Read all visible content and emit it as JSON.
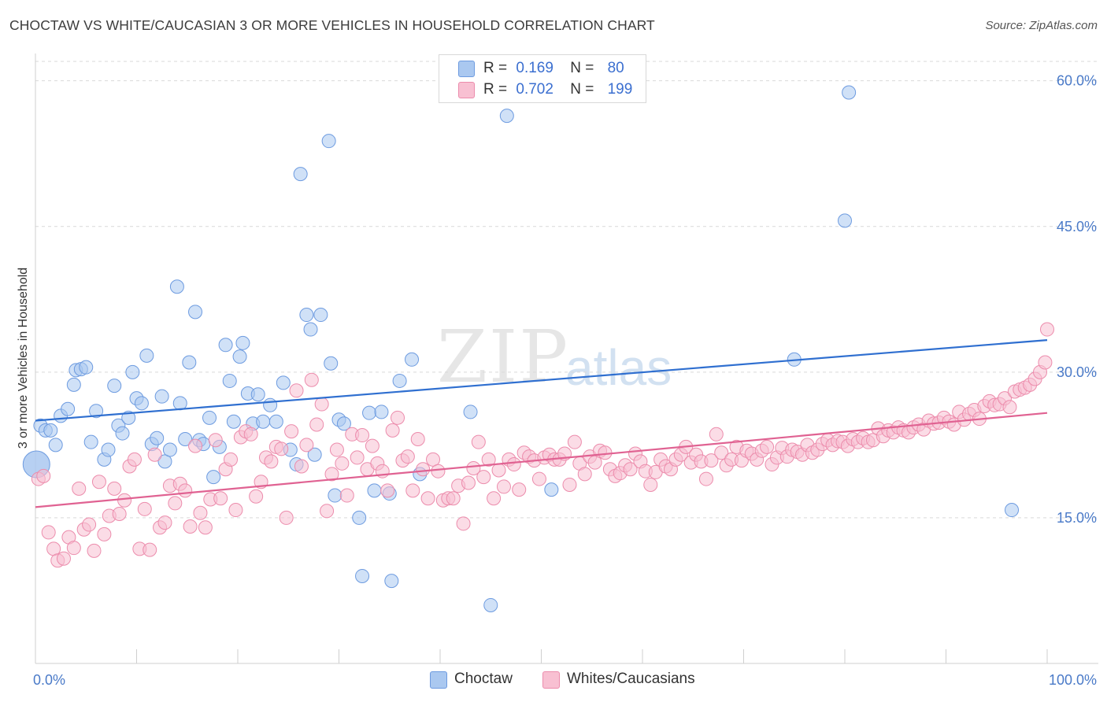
{
  "title": "CHOCTAW VS WHITE/CAUCASIAN 3 OR MORE VEHICLES IN HOUSEHOLD CORRELATION CHART",
  "source": "Source: ZipAtlas.com",
  "watermark": {
    "zip": "ZIP",
    "atlas": "atlas"
  },
  "legend": {
    "rows": [
      {
        "r_label": "R =",
        "r_value": "0.169",
        "n_label": "N =",
        "n_value": "80",
        "color": "#aac8f0",
        "border": "#6d9be0"
      },
      {
        "r_label": "R =",
        "r_value": "0.702",
        "n_label": "N =",
        "n_value": "199",
        "color": "#f8c0d2",
        "border": "#ec8cac"
      }
    ]
  },
  "bottom_legend": [
    "Choctaw",
    "Whites/Caucasians"
  ],
  "chart_data": {
    "type": "scatter",
    "ylabel": "3 or more Vehicles in Household",
    "xlim": [
      0,
      100
    ],
    "ylim": [
      0,
      62
    ],
    "x_tick_labels": [
      "0.0%",
      "100.0%"
    ],
    "y_ticks": [
      15,
      30,
      45,
      60
    ],
    "y_tick_labels": [
      "15.0%",
      "30.0%",
      "45.0%",
      "60.0%"
    ],
    "grid": "horizontal dashed",
    "series": [
      {
        "name": "Choctaw",
        "color": "#aac8f0",
        "stroke": "#6d9be0",
        "line_color": "#2f6fd0",
        "trend": [
          [
            0,
            25.0
          ],
          [
            100,
            33.3
          ]
        ],
        "points": [
          [
            0.1,
            20.5
          ],
          [
            0.5,
            24.5
          ],
          [
            1.0,
            24.0
          ],
          [
            1.5,
            24.0
          ],
          [
            2.0,
            22.5
          ],
          [
            2.5,
            25.5
          ],
          [
            3.2,
            26.2
          ],
          [
            3.8,
            28.7
          ],
          [
            4.0,
            30.2
          ],
          [
            4.5,
            30.3
          ],
          [
            5.0,
            30.5
          ],
          [
            5.5,
            22.8
          ],
          [
            6.0,
            26.0
          ],
          [
            6.8,
            21.0
          ],
          [
            7.2,
            22.0
          ],
          [
            7.8,
            28.6
          ],
          [
            8.2,
            24.5
          ],
          [
            8.6,
            23.7
          ],
          [
            9.2,
            25.3
          ],
          [
            9.6,
            30.0
          ],
          [
            10.0,
            27.3
          ],
          [
            10.5,
            26.8
          ],
          [
            11.0,
            31.7
          ],
          [
            11.5,
            22.6
          ],
          [
            12.0,
            23.2
          ],
          [
            12.5,
            27.5
          ],
          [
            12.8,
            20.8
          ],
          [
            13.3,
            22.0
          ],
          [
            14.0,
            38.8
          ],
          [
            14.3,
            26.8
          ],
          [
            14.8,
            23.1
          ],
          [
            15.2,
            31.0
          ],
          [
            15.8,
            36.2
          ],
          [
            16.2,
            23.0
          ],
          [
            16.6,
            22.6
          ],
          [
            17.2,
            25.3
          ],
          [
            17.6,
            19.2
          ],
          [
            18.2,
            22.3
          ],
          [
            18.8,
            32.8
          ],
          [
            19.2,
            29.1
          ],
          [
            19.6,
            24.9
          ],
          [
            20.2,
            31.6
          ],
          [
            20.5,
            33.0
          ],
          [
            21.0,
            27.8
          ],
          [
            21.5,
            24.7
          ],
          [
            22.0,
            27.7
          ],
          [
            22.5,
            24.9
          ],
          [
            23.2,
            26.6
          ],
          [
            23.8,
            24.9
          ],
          [
            24.5,
            28.9
          ],
          [
            25.2,
            22.0
          ],
          [
            25.8,
            20.5
          ],
          [
            26.2,
            50.4
          ],
          [
            26.8,
            35.9
          ],
          [
            27.2,
            34.4
          ],
          [
            27.6,
            21.5
          ],
          [
            28.2,
            35.9
          ],
          [
            29.0,
            53.8
          ],
          [
            29.2,
            30.9
          ],
          [
            29.6,
            17.3
          ],
          [
            30.0,
            25.1
          ],
          [
            30.5,
            24.7
          ],
          [
            32.0,
            15.0
          ],
          [
            32.3,
            9.0
          ],
          [
            33.0,
            25.8
          ],
          [
            33.5,
            17.8
          ],
          [
            34.2,
            25.9
          ],
          [
            35.0,
            17.5
          ],
          [
            35.2,
            8.5
          ],
          [
            36.0,
            29.1
          ],
          [
            37.2,
            31.3
          ],
          [
            38.0,
            19.5
          ],
          [
            43.0,
            25.9
          ],
          [
            45.0,
            6.0
          ],
          [
            46.6,
            56.4
          ],
          [
            51.0,
            17.9
          ],
          [
            75.0,
            31.3
          ],
          [
            80.0,
            45.6
          ],
          [
            80.4,
            58.8
          ],
          [
            96.5,
            15.8
          ]
        ]
      },
      {
        "name": "Whites/Caucasians",
        "color": "#f8c0d2",
        "stroke": "#ec8cac",
        "line_color": "#e06292",
        "trend": [
          [
            0,
            16.1
          ],
          [
            100,
            25.8
          ]
        ],
        "points": [
          [
            0.3,
            19.0
          ],
          [
            0.8,
            19.3
          ],
          [
            1.3,
            13.5
          ],
          [
            1.8,
            11.8
          ],
          [
            2.2,
            10.6
          ],
          [
            2.8,
            10.8
          ],
          [
            3.3,
            13.0
          ],
          [
            3.8,
            11.9
          ],
          [
            4.3,
            18.0
          ],
          [
            4.8,
            13.8
          ],
          [
            5.3,
            14.3
          ],
          [
            5.8,
            11.6
          ],
          [
            6.3,
            18.7
          ],
          [
            6.8,
            13.3
          ],
          [
            7.3,
            15.2
          ],
          [
            7.8,
            18.0
          ],
          [
            8.3,
            15.4
          ],
          [
            8.8,
            16.8
          ],
          [
            9.3,
            20.3
          ],
          [
            9.8,
            21.0
          ],
          [
            10.3,
            11.8
          ],
          [
            10.8,
            15.9
          ],
          [
            11.3,
            11.7
          ],
          [
            11.8,
            21.5
          ],
          [
            12.3,
            14.0
          ],
          [
            12.8,
            14.5
          ],
          [
            13.3,
            18.3
          ],
          [
            13.8,
            16.5
          ],
          [
            14.3,
            18.5
          ],
          [
            14.8,
            17.8
          ],
          [
            15.3,
            14.1
          ],
          [
            15.8,
            22.4
          ],
          [
            16.3,
            15.5
          ],
          [
            16.8,
            14.0
          ],
          [
            17.3,
            16.9
          ],
          [
            17.8,
            23.0
          ],
          [
            18.3,
            17.0
          ],
          [
            18.8,
            20.0
          ],
          [
            19.3,
            21.0
          ],
          [
            19.8,
            15.8
          ],
          [
            20.3,
            23.3
          ],
          [
            20.8,
            23.9
          ],
          [
            21.3,
            23.6
          ],
          [
            21.8,
            17.2
          ],
          [
            22.3,
            18.7
          ],
          [
            22.8,
            21.2
          ],
          [
            23.3,
            20.8
          ],
          [
            23.8,
            22.3
          ],
          [
            24.3,
            22.1
          ],
          [
            24.8,
            15.0
          ],
          [
            25.3,
            23.9
          ],
          [
            25.8,
            28.1
          ],
          [
            26.3,
            20.3
          ],
          [
            26.8,
            22.5
          ],
          [
            27.3,
            29.2
          ],
          [
            27.8,
            24.6
          ],
          [
            28.3,
            26.7
          ],
          [
            28.8,
            15.7
          ],
          [
            29.3,
            19.5
          ],
          [
            29.8,
            22.0
          ],
          [
            30.3,
            20.6
          ],
          [
            30.8,
            17.3
          ],
          [
            31.3,
            23.6
          ],
          [
            31.8,
            21.2
          ],
          [
            32.3,
            23.5
          ],
          [
            32.8,
            20.0
          ],
          [
            33.3,
            22.4
          ],
          [
            33.8,
            20.6
          ],
          [
            34.3,
            19.8
          ],
          [
            34.8,
            17.8
          ],
          [
            35.3,
            24.0
          ],
          [
            35.8,
            25.3
          ],
          [
            36.3,
            20.9
          ],
          [
            36.8,
            21.3
          ],
          [
            37.3,
            17.8
          ],
          [
            37.8,
            23.1
          ],
          [
            38.3,
            20.0
          ],
          [
            38.8,
            17.0
          ],
          [
            39.3,
            21.0
          ],
          [
            39.8,
            19.8
          ],
          [
            40.3,
            16.8
          ],
          [
            40.8,
            17.0
          ],
          [
            41.3,
            17.0
          ],
          [
            41.8,
            18.3
          ],
          [
            42.3,
            14.4
          ],
          [
            42.8,
            18.6
          ],
          [
            43.3,
            20.1
          ],
          [
            43.8,
            22.8
          ],
          [
            44.3,
            19.2
          ],
          [
            44.8,
            21.0
          ],
          [
            45.3,
            17.0
          ],
          [
            45.8,
            19.9
          ],
          [
            46.3,
            18.2
          ],
          [
            46.8,
            21.0
          ],
          [
            47.3,
            20.5
          ],
          [
            47.8,
            17.9
          ],
          [
            48.3,
            21.7
          ],
          [
            48.8,
            21.3
          ],
          [
            49.3,
            20.9
          ],
          [
            49.8,
            19.0
          ],
          [
            50.3,
            21.2
          ],
          [
            50.8,
            21.5
          ],
          [
            51.3,
            21.0
          ],
          [
            51.8,
            21.0
          ],
          [
            52.3,
            21.6
          ],
          [
            52.8,
            18.4
          ],
          [
            53.3,
            22.8
          ],
          [
            53.8,
            20.6
          ],
          [
            54.3,
            19.5
          ],
          [
            54.8,
            21.3
          ],
          [
            55.3,
            20.7
          ],
          [
            55.8,
            21.9
          ],
          [
            56.3,
            21.7
          ],
          [
            56.8,
            20.0
          ],
          [
            57.3,
            19.3
          ],
          [
            57.8,
            19.6
          ],
          [
            58.3,
            20.4
          ],
          [
            58.8,
            20.0
          ],
          [
            59.3,
            21.6
          ],
          [
            59.8,
            20.8
          ],
          [
            60.3,
            19.8
          ],
          [
            60.8,
            18.4
          ],
          [
            61.3,
            19.7
          ],
          [
            61.8,
            21.0
          ],
          [
            62.3,
            20.3
          ],
          [
            62.8,
            20.0
          ],
          [
            63.3,
            21.0
          ],
          [
            63.8,
            21.5
          ],
          [
            64.3,
            22.3
          ],
          [
            64.8,
            20.7
          ],
          [
            65.3,
            21.5
          ],
          [
            65.8,
            20.8
          ],
          [
            66.3,
            19.0
          ],
          [
            66.8,
            20.9
          ],
          [
            67.3,
            23.6
          ],
          [
            67.8,
            21.7
          ],
          [
            68.3,
            20.4
          ],
          [
            68.8,
            21.0
          ],
          [
            69.3,
            22.3
          ],
          [
            69.8,
            20.9
          ],
          [
            70.3,
            21.9
          ],
          [
            70.8,
            21.6
          ],
          [
            71.3,
            21.0
          ],
          [
            71.8,
            21.9
          ],
          [
            72.3,
            22.3
          ],
          [
            72.8,
            20.5
          ],
          [
            73.3,
            21.2
          ],
          [
            73.8,
            22.2
          ],
          [
            74.3,
            21.3
          ],
          [
            74.8,
            22.0
          ],
          [
            75.3,
            21.8
          ],
          [
            75.8,
            21.5
          ],
          [
            76.3,
            22.5
          ],
          [
            76.8,
            21.7
          ],
          [
            77.3,
            22.0
          ],
          [
            77.8,
            22.6
          ],
          [
            78.3,
            23.0
          ],
          [
            78.8,
            22.5
          ],
          [
            79.3,
            22.9
          ],
          [
            79.8,
            22.8
          ],
          [
            80.3,
            22.4
          ],
          [
            80.8,
            23.1
          ],
          [
            81.3,
            22.8
          ],
          [
            81.8,
            23.2
          ],
          [
            82.3,
            22.8
          ],
          [
            82.8,
            23.0
          ],
          [
            83.3,
            24.2
          ],
          [
            83.8,
            23.4
          ],
          [
            84.3,
            24.0
          ],
          [
            84.8,
            23.8
          ],
          [
            85.3,
            24.3
          ],
          [
            85.8,
            24.0
          ],
          [
            86.3,
            23.8
          ],
          [
            86.8,
            24.3
          ],
          [
            87.3,
            24.6
          ],
          [
            87.8,
            24.1
          ],
          [
            88.3,
            25.0
          ],
          [
            88.8,
            24.7
          ],
          [
            89.3,
            24.8
          ],
          [
            89.8,
            25.3
          ],
          [
            90.3,
            24.9
          ],
          [
            90.8,
            24.6
          ],
          [
            91.3,
            25.9
          ],
          [
            91.8,
            25.1
          ],
          [
            92.3,
            25.7
          ],
          [
            92.8,
            26.1
          ],
          [
            93.3,
            25.2
          ],
          [
            93.8,
            26.5
          ],
          [
            94.3,
            27.0
          ],
          [
            94.8,
            26.6
          ],
          [
            95.3,
            26.7
          ],
          [
            95.8,
            27.3
          ],
          [
            96.3,
            26.4
          ],
          [
            96.8,
            28.0
          ],
          [
            97.3,
            28.2
          ],
          [
            97.8,
            28.4
          ],
          [
            98.3,
            28.7
          ],
          [
            98.8,
            29.3
          ],
          [
            99.3,
            30.0
          ],
          [
            99.8,
            31.0
          ],
          [
            100.0,
            34.4
          ]
        ]
      }
    ]
  }
}
